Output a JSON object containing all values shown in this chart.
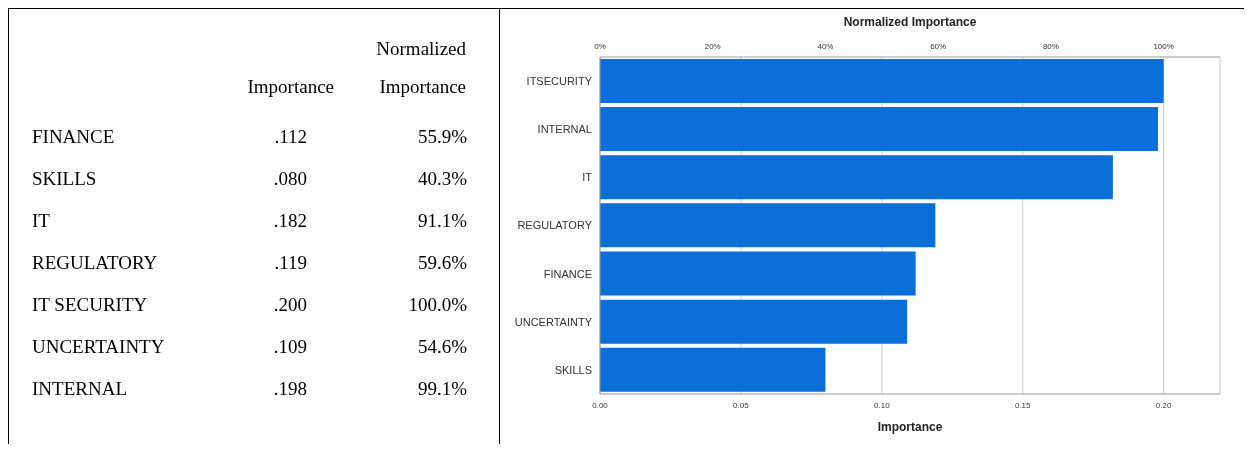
{
  "chart_data": [
    {
      "type": "other",
      "categories": [
        "FINANCE",
        "SKILLS",
        "IT",
        "REGULATORY",
        "IT SECURITY",
        "UNCERTAINTY",
        "INTERNAL"
      ],
      "series": [
        {
          "name": "Importance",
          "values": [
            0.112,
            0.08,
            0.182,
            0.119,
            0.2,
            0.109,
            0.198
          ],
          "value_labels": [
            ".112",
            ".080",
            ".182",
            ".119",
            ".200",
            ".109",
            ".198"
          ]
        },
        {
          "name": "Normalized Importance",
          "values": [
            55.9,
            40.3,
            91.1,
            59.6,
            100.0,
            54.6,
            99.1
          ],
          "value_labels": [
            "55.9%",
            "40.3%",
            "91.1%",
            "59.6%",
            "100.0%",
            "54.6%",
            "99.1%"
          ]
        }
      ]
    },
    {
      "type": "bar",
      "orientation": "horizontal",
      "categories": [
        "ITSECURITY",
        "INTERNAL",
        "IT",
        "REGULATORY",
        "FINANCE",
        "UNCERTAINTY",
        "SKILLS"
      ],
      "values": [
        0.2,
        0.198,
        0.182,
        0.119,
        0.112,
        0.109,
        0.08
      ],
      "color": "#0a6fd8",
      "xlabel": "Importance",
      "xlim": [
        0,
        0.22
      ],
      "xticks": [
        {
          "value": 0,
          "label": "0.00"
        },
        0.05,
        {
          "value": 0.1,
          "label": "0.10"
        },
        0.15,
        {
          "value": 0.2,
          "label": "0.20"
        }
      ],
      "x2label": "Normalized Importance",
      "x2lim": [
        0,
        110
      ],
      "x2ticks": [
        {
          "value": 0,
          "label": "0%"
        },
        {
          "value": 20,
          "label": "20%"
        },
        {
          "value": 40,
          "label": "40%"
        },
        {
          "value": 60,
          "label": "60%"
        },
        {
          "value": 80,
          "label": "80%"
        },
        {
          "value": 100,
          "label": "100%"
        }
      ],
      "grid": "x"
    }
  ]
}
